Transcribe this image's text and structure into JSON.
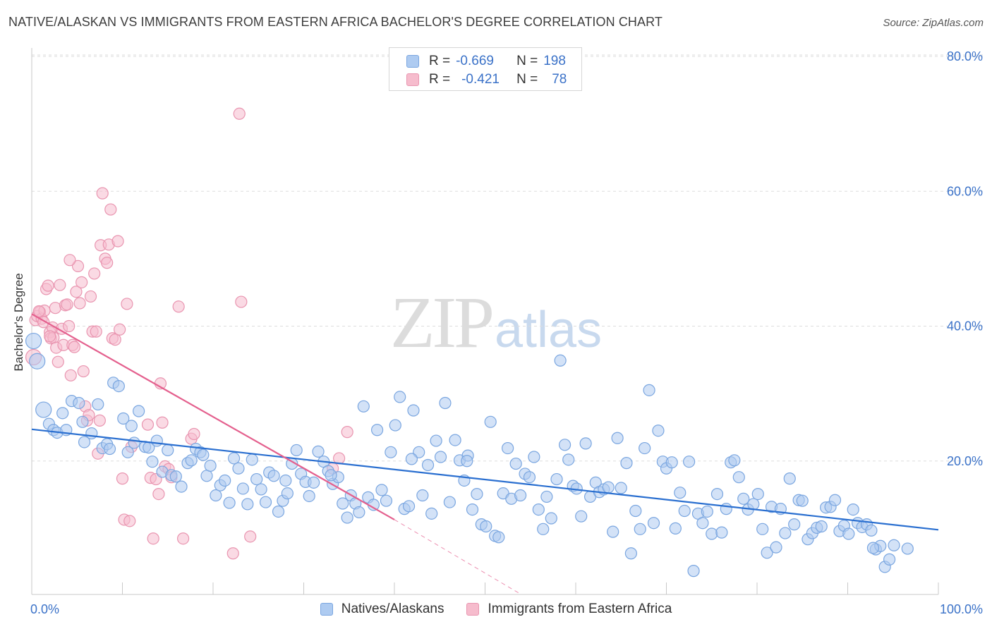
{
  "title": "NATIVE/ALASKAN VS IMMIGRANTS FROM EASTERN AFRICA BACHELOR'S DEGREE CORRELATION CHART",
  "source": "Source: ZipAtlas.com",
  "watermark": {
    "part1": "ZIP",
    "part2": "atlas"
  },
  "legend_top": {
    "rows": [
      {
        "r_label": "R =",
        "r_value": "-0.669",
        "n_label": "N =",
        "n_value": "198"
      },
      {
        "r_label": "R =",
        "r_value": "-0.421",
        "n_label": "N =",
        "n_value": "78"
      }
    ]
  },
  "legend_bottom": {
    "items": [
      "Natives/Alaskans",
      "Immigrants from Eastern Africa"
    ]
  },
  "colors": {
    "blue_fill": "#aecbf1",
    "blue_stroke": "#7aa6e0",
    "blue_line": "#2a6fd0",
    "pink_fill": "#f6bccd",
    "pink_stroke": "#e995b0",
    "pink_line": "#e4608e",
    "tick_label": "#3b72c8",
    "grid": "#dddddd"
  },
  "chart_data": {
    "type": "scatter",
    "title": "NATIVE/ALASKAN VS IMMIGRANTS FROM EASTERN AFRICA BACHELOR'S DEGREE CORRELATION CHART",
    "xlabel": "",
    "ylabel": "Bachelor's Degree",
    "xlim": [
      0,
      100
    ],
    "ylim": [
      0,
      80
    ],
    "x_tick_labels": [
      "0.0%",
      "100.0%"
    ],
    "y_ticks": [
      20,
      40,
      60,
      80
    ],
    "y_tick_labels": [
      "20.0%",
      "40.0%",
      "60.0%",
      "80.0%"
    ],
    "grid": true,
    "legend_position": "bottom",
    "series": [
      {
        "name": "Natives/Alaskans",
        "color": "#aecbf1",
        "trend": {
          "x": [
            0,
            100
          ],
          "y": [
            24.7,
            9.8
          ]
        },
        "points": [
          [
            0.2,
            37.8
          ],
          [
            0.6,
            34.8
          ],
          [
            1.3,
            27.6
          ],
          [
            1.9,
            25.5
          ],
          [
            2.4,
            24.6
          ],
          [
            2.8,
            24.2
          ],
          [
            3.4,
            27.1
          ],
          [
            3.8,
            24.6
          ],
          [
            4.4,
            28.9
          ],
          [
            5.2,
            28.6
          ],
          [
            5.6,
            25.8
          ],
          [
            5.8,
            22.8
          ],
          [
            6.6,
            24.1
          ],
          [
            7.3,
            28.4
          ],
          [
            7.8,
            21.9
          ],
          [
            8.3,
            22.5
          ],
          [
            8.6,
            21.8
          ],
          [
            9.0,
            31.6
          ],
          [
            9.6,
            31.1
          ],
          [
            10.1,
            26.3
          ],
          [
            10.6,
            21.3
          ],
          [
            11.0,
            25.2
          ],
          [
            11.3,
            22.7
          ],
          [
            11.8,
            27.4
          ],
          [
            12.5,
            22.1
          ],
          [
            12.9,
            22.0
          ],
          [
            13.3,
            19.9
          ],
          [
            13.8,
            23.0
          ],
          [
            14.4,
            18.4
          ],
          [
            15.0,
            21.6
          ],
          [
            15.4,
            17.9
          ],
          [
            15.9,
            17.7
          ],
          [
            16.5,
            16.2
          ],
          [
            17.2,
            19.7
          ],
          [
            17.6,
            20.1
          ],
          [
            18.1,
            21.8
          ],
          [
            18.6,
            21.3
          ],
          [
            18.9,
            20.9
          ],
          [
            19.3,
            17.8
          ],
          [
            19.7,
            19.3
          ],
          [
            20.3,
            14.9
          ],
          [
            20.8,
            16.4
          ],
          [
            21.3,
            17.1
          ],
          [
            21.8,
            13.8
          ],
          [
            22.3,
            20.4
          ],
          [
            22.8,
            18.9
          ],
          [
            23.3,
            15.9
          ],
          [
            23.8,
            13.6
          ],
          [
            24.3,
            20.2
          ],
          [
            24.8,
            17.3
          ],
          [
            25.3,
            15.8
          ],
          [
            25.8,
            13.9
          ],
          [
            26.2,
            18.3
          ],
          [
            26.7,
            17.8
          ],
          [
            27.2,
            12.5
          ],
          [
            27.7,
            14.1
          ],
          [
            28.2,
            15.2
          ],
          [
            28.7,
            19.6
          ],
          [
            29.2,
            21.6
          ],
          [
            29.7,
            18.1
          ],
          [
            30.2,
            16.9
          ],
          [
            30.6,
            14.8
          ],
          [
            31.1,
            16.8
          ],
          [
            31.6,
            21.4
          ],
          [
            32.2,
            19.9
          ],
          [
            32.7,
            18.5
          ],
          [
            33.2,
            16.6
          ],
          [
            33.8,
            17.6
          ],
          [
            34.3,
            13.7
          ],
          [
            34.8,
            11.6
          ],
          [
            35.2,
            14.9
          ],
          [
            35.7,
            13.7
          ],
          [
            36.1,
            12.4
          ],
          [
            36.6,
            28.1
          ],
          [
            37.1,
            14.6
          ],
          [
            37.7,
            13.5
          ],
          [
            38.1,
            24.6
          ],
          [
            38.6,
            15.7
          ],
          [
            39.1,
            14.1
          ],
          [
            39.6,
            21.3
          ],
          [
            40.1,
            25.3
          ],
          [
            40.6,
            29.5
          ],
          [
            41.1,
            12.9
          ],
          [
            41.6,
            13.3
          ],
          [
            42.1,
            27.5
          ],
          [
            42.7,
            21.3
          ],
          [
            43.1,
            14.9
          ],
          [
            43.7,
            19.4
          ],
          [
            44.1,
            12.2
          ],
          [
            44.6,
            23.0
          ],
          [
            45.1,
            20.6
          ],
          [
            45.6,
            28.6
          ],
          [
            46.1,
            13.9
          ],
          [
            46.7,
            23.1
          ],
          [
            47.2,
            20.1
          ],
          [
            47.7,
            17.1
          ],
          [
            48.1,
            20.8
          ],
          [
            48.6,
            12.8
          ],
          [
            49.1,
            15.1
          ],
          [
            49.6,
            10.6
          ],
          [
            50.1,
            10.3
          ],
          [
            50.6,
            25.8
          ],
          [
            51.1,
            8.9
          ],
          [
            51.5,
            8.7
          ],
          [
            52.0,
            15.2
          ],
          [
            52.5,
            21.9
          ],
          [
            52.9,
            14.4
          ],
          [
            53.4,
            19.6
          ],
          [
            53.9,
            14.9
          ],
          [
            54.4,
            18.1
          ],
          [
            54.9,
            17.6
          ],
          [
            55.4,
            20.6
          ],
          [
            55.9,
            12.8
          ],
          [
            56.4,
            9.9
          ],
          [
            56.8,
            14.7
          ],
          [
            57.3,
            11.5
          ],
          [
            57.9,
            17.3
          ],
          [
            58.3,
            34.9
          ],
          [
            58.8,
            22.4
          ],
          [
            59.2,
            20.2
          ],
          [
            59.7,
            16.3
          ],
          [
            60.1,
            15.9
          ],
          [
            60.6,
            11.8
          ],
          [
            61.1,
            22.6
          ],
          [
            61.6,
            14.7
          ],
          [
            62.2,
            16.8
          ],
          [
            62.6,
            15.4
          ],
          [
            63.1,
            15.8
          ],
          [
            63.6,
            16.1
          ],
          [
            64.1,
            9.5
          ],
          [
            64.6,
            23.4
          ],
          [
            65.0,
            16.0
          ],
          [
            65.6,
            19.7
          ],
          [
            66.1,
            6.3
          ],
          [
            66.6,
            12.6
          ],
          [
            67.1,
            9.9
          ],
          [
            67.6,
            21.9
          ],
          [
            68.1,
            30.5
          ],
          [
            68.6,
            10.8
          ],
          [
            69.1,
            24.5
          ],
          [
            69.6,
            19.9
          ],
          [
            70.0,
            18.9
          ],
          [
            70.6,
            19.8
          ],
          [
            71.0,
            10.0
          ],
          [
            71.5,
            15.3
          ],
          [
            72.0,
            12.6
          ],
          [
            72.5,
            19.9
          ],
          [
            73.0,
            3.7
          ],
          [
            73.5,
            12.2
          ],
          [
            74.0,
            10.8
          ],
          [
            74.5,
            12.5
          ],
          [
            75.0,
            9.2
          ],
          [
            75.6,
            15.1
          ],
          [
            76.1,
            9.4
          ],
          [
            76.6,
            12.9
          ],
          [
            77.1,
            19.8
          ],
          [
            77.5,
            20.1
          ],
          [
            78.0,
            17.6
          ],
          [
            78.5,
            14.4
          ],
          [
            79.0,
            12.8
          ],
          [
            79.6,
            13.6
          ],
          [
            80.1,
            15.1
          ],
          [
            80.6,
            9.9
          ],
          [
            81.1,
            6.4
          ],
          [
            81.6,
            13.2
          ],
          [
            82.1,
            7.2
          ],
          [
            82.6,
            12.9
          ],
          [
            83.1,
            9.3
          ],
          [
            83.6,
            17.4
          ],
          [
            84.1,
            10.6
          ],
          [
            84.6,
            14.2
          ],
          [
            85.0,
            14.1
          ],
          [
            85.6,
            8.4
          ],
          [
            86.1,
            9.3
          ],
          [
            86.6,
            10.1
          ],
          [
            87.1,
            10.3
          ],
          [
            87.6,
            13.1
          ],
          [
            88.1,
            13.2
          ],
          [
            88.6,
            14.2
          ],
          [
            89.1,
            9.6
          ],
          [
            89.6,
            10.4
          ],
          [
            90.1,
            9.2
          ],
          [
            90.6,
            12.8
          ],
          [
            91.1,
            10.8
          ],
          [
            91.6,
            10.2
          ],
          [
            92.1,
            10.6
          ],
          [
            92.6,
            9.7
          ],
          [
            93.1,
            6.9
          ],
          [
            93.6,
            7.4
          ],
          [
            94.1,
            4.3
          ],
          [
            94.6,
            5.4
          ],
          [
            95.1,
            7.5
          ],
          [
            96.6,
            7.0
          ],
          [
            92.8,
            7.1
          ],
          [
            48.0,
            20.0
          ],
          [
            41.9,
            20.3
          ],
          [
            33.0,
            17.9
          ],
          [
            28.0,
            17.1
          ]
        ],
        "large_points": [
          [
            0.2,
            37.8
          ],
          [
            0.6,
            34.8
          ],
          [
            1.3,
            27.6
          ]
        ]
      },
      {
        "name": "Immigrants from Eastern Africa",
        "color": "#f6bccd",
        "trend": {
          "x": [
            0,
            40
          ],
          "y": [
            41.8,
            11.3
          ]
        },
        "trend_dashed_extension": {
          "x": [
            40,
            54
          ],
          "y": [
            11.3,
            0.2
          ]
        },
        "points": [
          [
            0.2,
            35.4
          ],
          [
            0.4,
            40.9
          ],
          [
            0.6,
            41.5
          ],
          [
            0.9,
            42.1
          ],
          [
            1.1,
            41.1
          ],
          [
            1.3,
            40.6
          ],
          [
            1.4,
            42.3
          ],
          [
            1.6,
            45.5
          ],
          [
            1.8,
            46.0
          ],
          [
            2.0,
            39.1
          ],
          [
            2.1,
            38.2
          ],
          [
            2.3,
            39.8
          ],
          [
            2.4,
            38.3
          ],
          [
            2.6,
            42.7
          ],
          [
            2.7,
            36.8
          ],
          [
            2.9,
            34.7
          ],
          [
            3.1,
            46.1
          ],
          [
            3.3,
            39.6
          ],
          [
            3.5,
            37.2
          ],
          [
            3.7,
            43.1
          ],
          [
            3.9,
            43.2
          ],
          [
            4.1,
            40.0
          ],
          [
            4.3,
            32.7
          ],
          [
            4.5,
            37.2
          ],
          [
            4.7,
            36.9
          ],
          [
            4.9,
            45.1
          ],
          [
            5.1,
            48.9
          ],
          [
            5.3,
            43.4
          ],
          [
            5.5,
            46.5
          ],
          [
            5.7,
            33.3
          ],
          [
            5.9,
            28.1
          ],
          [
            6.1,
            26.0
          ],
          [
            6.3,
            26.8
          ],
          [
            6.5,
            44.4
          ],
          [
            6.7,
            39.2
          ],
          [
            6.9,
            47.8
          ],
          [
            7.1,
            39.2
          ],
          [
            7.3,
            21.1
          ],
          [
            7.5,
            26.0
          ],
          [
            7.6,
            52.0
          ],
          [
            7.8,
            59.7
          ],
          [
            8.1,
            50.0
          ],
          [
            8.3,
            49.4
          ],
          [
            8.5,
            52.1
          ],
          [
            8.7,
            57.3
          ],
          [
            8.9,
            38.2
          ],
          [
            9.2,
            38.0
          ],
          [
            9.5,
            52.6
          ],
          [
            9.7,
            39.5
          ],
          [
            10.0,
            17.4
          ],
          [
            10.2,
            11.3
          ],
          [
            10.5,
            43.3
          ],
          [
            10.8,
            11.1
          ],
          [
            11.0,
            22.1
          ],
          [
            12.8,
            25.4
          ],
          [
            13.1,
            17.5
          ],
          [
            13.4,
            8.5
          ],
          [
            13.7,
            17.3
          ],
          [
            14.0,
            15.1
          ],
          [
            14.2,
            31.5
          ],
          [
            14.4,
            25.7
          ],
          [
            14.7,
            19.2
          ],
          [
            15.1,
            18.8
          ],
          [
            15.4,
            17.6
          ],
          [
            16.2,
            42.9
          ],
          [
            16.7,
            8.5
          ],
          [
            17.6,
            23.3
          ],
          [
            17.9,
            24.0
          ],
          [
            22.2,
            6.3
          ],
          [
            22.9,
            71.5
          ],
          [
            23.1,
            43.6
          ],
          [
            24.1,
            8.8
          ],
          [
            33.2,
            18.9
          ],
          [
            33.9,
            20.4
          ],
          [
            34.8,
            24.3
          ],
          [
            4.2,
            49.8
          ],
          [
            2.0,
            38.5
          ],
          [
            0.8,
            42.2
          ]
        ],
        "large_points": [
          [
            0.2,
            35.4
          ]
        ]
      }
    ]
  }
}
